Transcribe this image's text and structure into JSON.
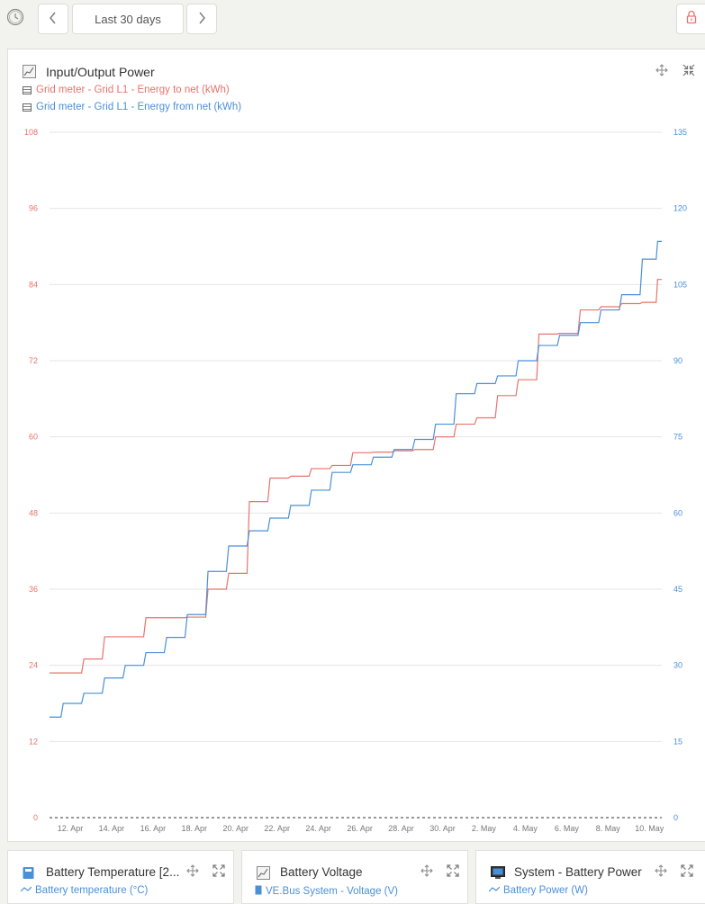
{
  "toolbar": {
    "range_label": "Last 30 days",
    "clock_icon": "clock-icon",
    "prev_icon": "chevron-left-icon",
    "next_icon": "chevron-right-icon",
    "lock_icon": "lock-icon"
  },
  "main_panel": {
    "title": "Input/Output Power",
    "legend": [
      {
        "label": "Grid meter - Grid L1 - Energy to net (kWh)",
        "color": "#e8736c"
      },
      {
        "label": "Grid meter - Grid L1 - Energy from net (kWh)",
        "color": "#4a90d9"
      }
    ]
  },
  "chart_data": {
    "type": "line",
    "x_ticks": [
      "12. Apr",
      "14. Apr",
      "16. Apr",
      "18. Apr",
      "20. Apr",
      "22. Apr",
      "24. Apr",
      "26. Apr",
      "28. Apr",
      "30. Apr",
      "2. May",
      "4. May",
      "6. May",
      "8. May",
      "10. May"
    ],
    "y_left_ticks": [
      0,
      12,
      24,
      36,
      48,
      60,
      72,
      84,
      96,
      108
    ],
    "y_right_ticks": [
      0,
      15,
      30,
      45,
      60,
      75,
      90,
      105,
      120,
      135
    ],
    "ylim_left": [
      0,
      108
    ],
    "ylim_right": [
      0,
      135
    ],
    "grid": true,
    "series": [
      {
        "name": "Grid meter - Grid L1 - Energy to net (kWh)",
        "axis": "left",
        "color": "#e8736c",
        "points": [
          [
            "11. Apr",
            22.8
          ],
          [
            "12. Apr",
            22.8
          ],
          [
            "13. Apr",
            25.0
          ],
          [
            "14. Apr",
            28.5
          ],
          [
            "15. Apr",
            28.5
          ],
          [
            "16. Apr",
            31.5
          ],
          [
            "17. Apr",
            31.5
          ],
          [
            "18. Apr",
            31.6
          ],
          [
            "19. Apr",
            36.0
          ],
          [
            "20. Apr",
            38.5
          ],
          [
            "21. Apr",
            49.8
          ],
          [
            "22. Apr",
            53.5
          ],
          [
            "23. Apr",
            53.8
          ],
          [
            "24. Apr",
            55.0
          ],
          [
            "25. Apr",
            55.5
          ],
          [
            "26. Apr",
            57.5
          ],
          [
            "27. Apr",
            57.6
          ],
          [
            "28. Apr",
            57.8
          ],
          [
            "29. Apr",
            58.0
          ],
          [
            "30. Apr",
            60.0
          ],
          [
            "1. May",
            62.0
          ],
          [
            "2. May",
            63.0
          ],
          [
            "3. May",
            66.5
          ],
          [
            "4. May",
            69.0
          ],
          [
            "5. May",
            76.2
          ],
          [
            "6. May",
            76.3
          ],
          [
            "7. May",
            80.0
          ],
          [
            "8. May",
            80.5
          ],
          [
            "9. May",
            81.0
          ],
          [
            "10. May",
            81.2
          ],
          [
            "10.6 May",
            84.8
          ]
        ]
      },
      {
        "name": "Grid meter - Grid L1 - Energy from net (kWh)",
        "axis": "right",
        "color": "#4a90d9",
        "points": [
          [
            "11. Apr",
            19.8
          ],
          [
            "12. Apr",
            22.5
          ],
          [
            "13. Apr",
            24.5
          ],
          [
            "14. Apr",
            27.5
          ],
          [
            "15. Apr",
            30.0
          ],
          [
            "16. Apr",
            32.5
          ],
          [
            "17. Apr",
            35.5
          ],
          [
            "18. Apr",
            40.0
          ],
          [
            "19. Apr",
            48.5
          ],
          [
            "20. Apr",
            53.5
          ],
          [
            "21. Apr",
            56.5
          ],
          [
            "22. Apr",
            59.0
          ],
          [
            "23. Apr",
            61.5
          ],
          [
            "24. Apr",
            64.5
          ],
          [
            "25. Apr",
            68.0
          ],
          [
            "26. Apr",
            69.5
          ],
          [
            "27. Apr",
            71.0
          ],
          [
            "28. Apr",
            72.5
          ],
          [
            "29. Apr",
            74.5
          ],
          [
            "30. Apr",
            77.5
          ],
          [
            "1. May",
            83.5
          ],
          [
            "2. May",
            85.5
          ],
          [
            "3. May",
            87.0
          ],
          [
            "4. May",
            90.0
          ],
          [
            "5. May",
            93.0
          ],
          [
            "6. May",
            95.0
          ],
          [
            "7. May",
            97.5
          ],
          [
            "8. May",
            100.0
          ],
          [
            "9. May",
            103.0
          ],
          [
            "10. May",
            110.0
          ],
          [
            "10.6 May",
            113.5
          ]
        ]
      }
    ]
  },
  "bottom_panels": [
    {
      "title": "Battery Temperature [2...",
      "subtitle": "Battery temperature (°C)",
      "icon": "battery-device-icon"
    },
    {
      "title": "Battery Voltage",
      "subtitle": "VE.Bus System - Voltage (V)",
      "icon": "graph-icon"
    },
    {
      "title": "System - Battery Power",
      "subtitle": "Battery Power (W)",
      "icon": "monitor-icon"
    }
  ]
}
